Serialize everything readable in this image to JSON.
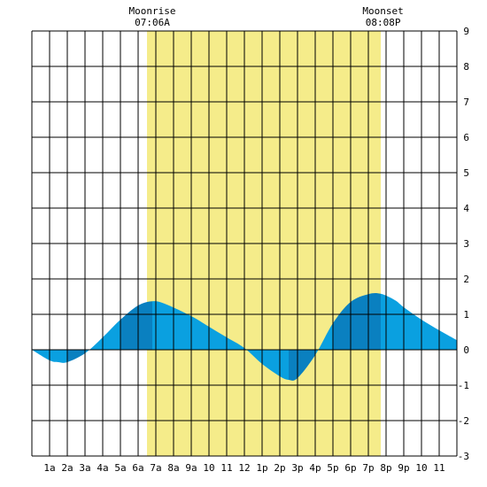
{
  "chart_data": {
    "type": "area",
    "xlabel": "",
    "ylabel": "",
    "x_ticks": [
      "1a",
      "2a",
      "3a",
      "4a",
      "5a",
      "6a",
      "7a",
      "8a",
      "9a",
      "10",
      "11",
      "12",
      "1p",
      "2p",
      "3p",
      "4p",
      "5p",
      "6p",
      "7p",
      "8p",
      "9p",
      "10",
      "11"
    ],
    "ylim": [
      -3,
      9
    ],
    "y_ticks": [
      "9",
      "8",
      "7",
      "6",
      "5",
      "4",
      "3",
      "2",
      "1",
      "0",
      "-1",
      "-2",
      "-3"
    ],
    "grid": true,
    "moon_window": {
      "start_hour": 6.5,
      "end_hour": 19.7,
      "color": "#f5ec8a"
    },
    "moonrise": {
      "label": "Moonrise",
      "time": "07:06A",
      "hour": 7.1
    },
    "moonset": {
      "label": "Moonset",
      "time": "08:08P",
      "hour": 20.13
    },
    "tide_color_light": "#0aa0e0",
    "tide_color_dark": "#0a80c0",
    "series": [
      {
        "x": [
          0,
          1,
          1.5,
          2,
          3,
          4,
          5,
          6,
          6.8,
          7.5,
          9,
          10,
          11,
          12,
          13,
          14,
          14.5,
          15,
          16,
          17,
          18,
          19,
          19.7,
          20.5,
          21,
          22,
          23,
          24
        ],
        "values": [
          0,
          -0.3,
          -0.35,
          -0.35,
          -0.1,
          0.35,
          0.85,
          1.25,
          1.37,
          1.3,
          0.95,
          0.65,
          0.35,
          0.05,
          -0.4,
          -0.75,
          -0.85,
          -0.8,
          -0.15,
          0.75,
          1.35,
          1.57,
          1.58,
          1.4,
          1.2,
          0.85,
          0.55,
          0.27
        ]
      }
    ]
  }
}
